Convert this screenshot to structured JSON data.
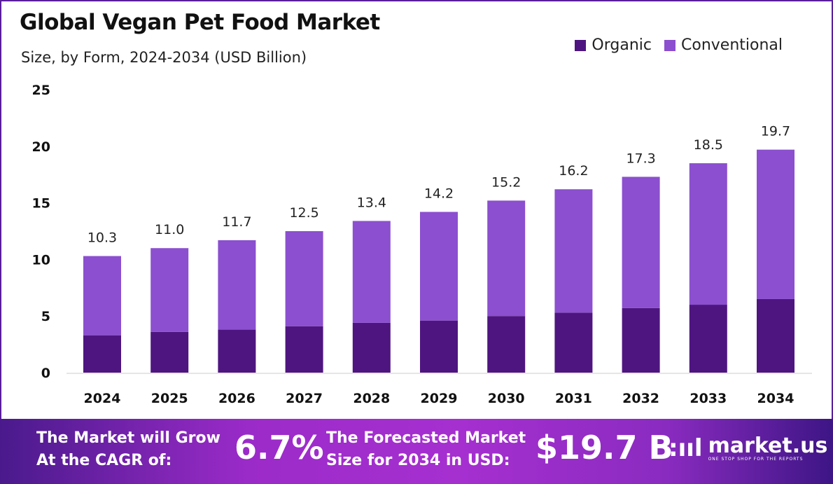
{
  "chart_data": {
    "type": "bar",
    "stacked": true,
    "title": "Global Vegan Pet Food Market",
    "subtitle": "Size, by Form, 2024-2034 (USD Billion)",
    "xlabel": "",
    "ylabel": "",
    "ylim": [
      0,
      25
    ],
    "yticks": [
      0,
      5,
      10,
      15,
      20,
      25
    ],
    "grid": false,
    "legend_position": "top-right",
    "categories": [
      "2024",
      "2025",
      "2026",
      "2027",
      "2028",
      "2029",
      "2030",
      "2031",
      "2032",
      "2033",
      "2034"
    ],
    "totals": [
      10.3,
      11.0,
      11.7,
      12.5,
      13.4,
      14.2,
      15.2,
      16.2,
      17.3,
      18.5,
      19.7
    ],
    "total_labels": [
      "10.3",
      "11.0",
      "11.7",
      "12.5",
      "13.4",
      "14.2",
      "15.2",
      "16.2",
      "17.3",
      "18.5",
      "19.7"
    ],
    "series": [
      {
        "name": "Organic",
        "color": "#4e1580",
        "values": [
          3.3,
          3.6,
          3.8,
          4.1,
          4.4,
          4.6,
          5.0,
          5.3,
          5.7,
          6.0,
          6.5
        ]
      },
      {
        "name": "Conventional",
        "color": "#8b4fcf",
        "values": [
          7.0,
          7.4,
          7.9,
          8.4,
          9.0,
          9.6,
          10.2,
          10.9,
          11.6,
          12.5,
          13.2
        ]
      }
    ]
  },
  "footer": {
    "cagr_label_line1": "The Market will Grow",
    "cagr_label_line2": "At the CAGR of:",
    "cagr_value": "6.7%",
    "forecast_label_line1": "The Forecasted Market",
    "forecast_label_line2": "Size for 2034 in USD:",
    "forecast_value": "$19.7 B",
    "logo_name": "market.us",
    "logo_tagline": "ONE STOP SHOP FOR THE REPORTS"
  }
}
